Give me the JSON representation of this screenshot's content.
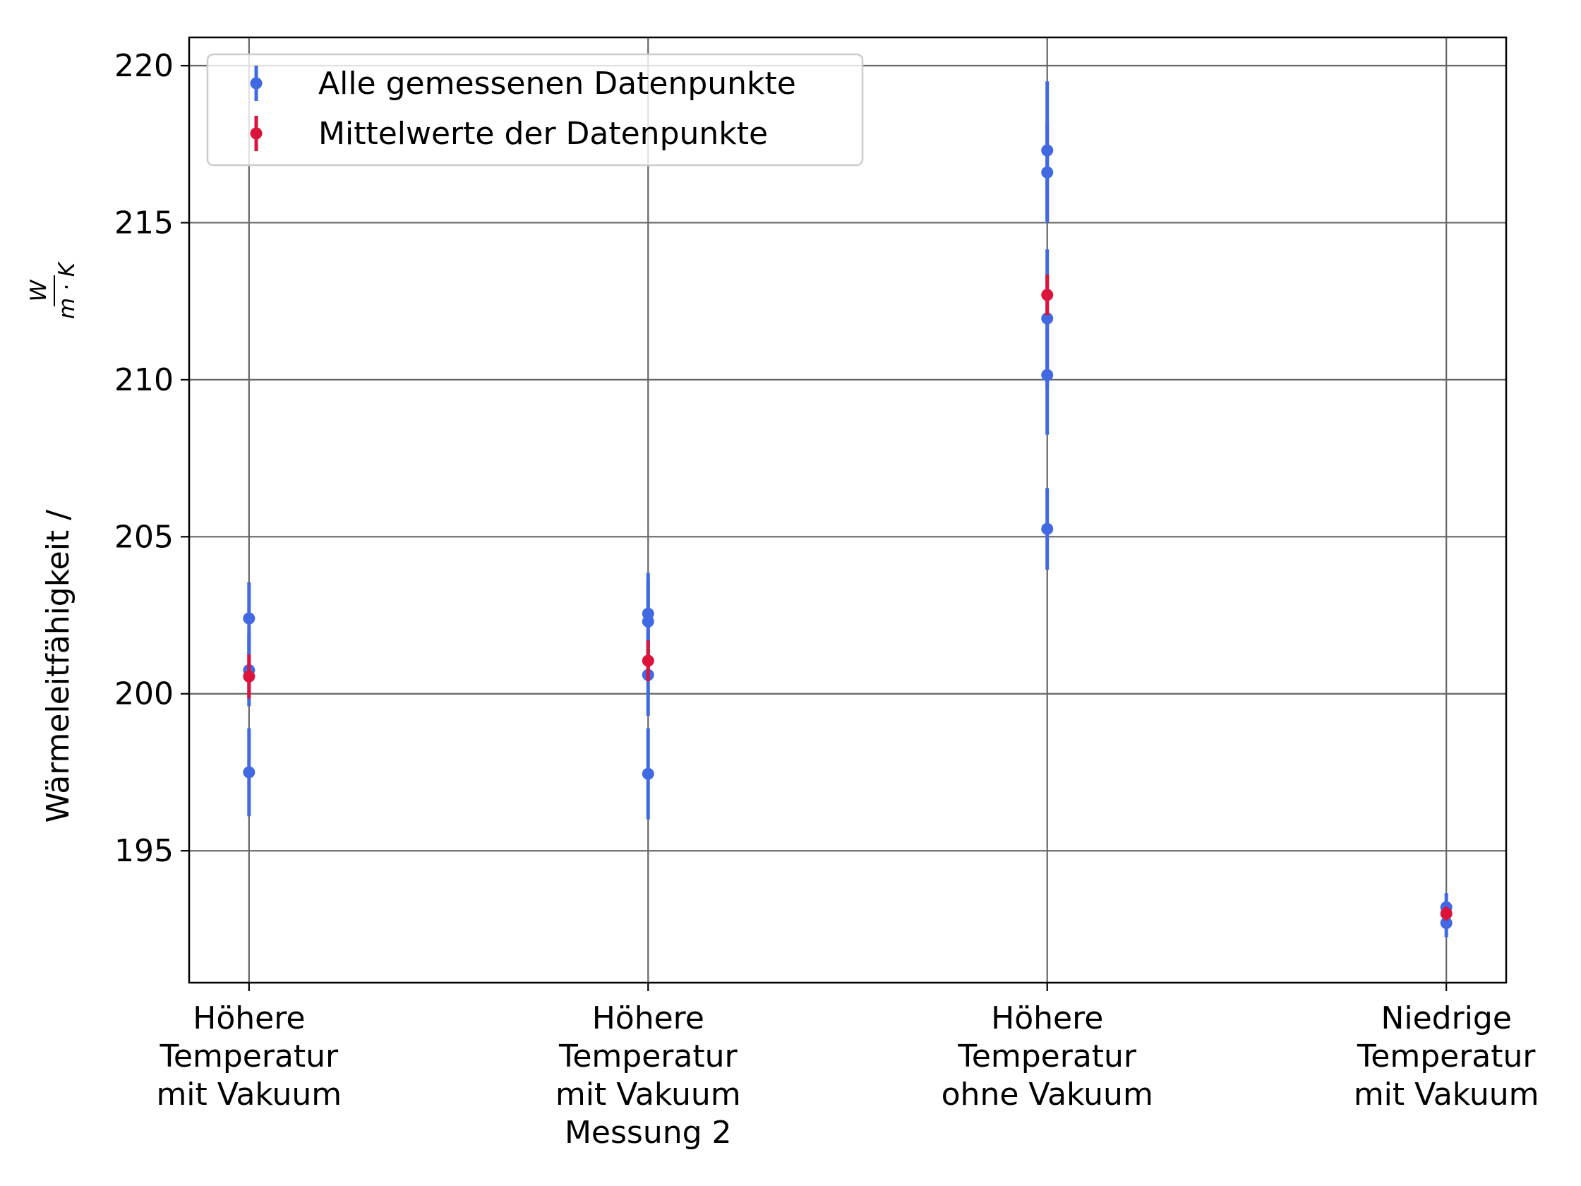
{
  "chart_data": {
    "type": "scatter",
    "title": "",
    "ylabel": "Wärmeleitfähigkeit / ",
    "ylabel_unit": {
      "numerator": "W",
      "denominator": "m · K"
    },
    "xlabel": "",
    "categories": [
      [
        "Höhere",
        "Temperatur",
        "mit Vakuum"
      ],
      [
        "Höhere",
        "Temperatur",
        "mit Vakuum",
        "Messung 2"
      ],
      [
        "Höhere",
        "Temperatur",
        "ohne Vakuum"
      ],
      [
        "Niedrige",
        "Temperatur",
        "mit Vakuum"
      ]
    ],
    "ylim": [
      190.8,
      220.9
    ],
    "xlim": [
      -0.15,
      3.15
    ],
    "yticks": [
      195,
      200,
      205,
      210,
      215,
      220
    ],
    "grid": true,
    "legend_position": "top-left",
    "series": [
      {
        "name": "Alle gemessenen Datenpunkte",
        "color": "#4169E1",
        "points": [
          {
            "x": 0,
            "y": 202.4,
            "err": 1.15
          },
          {
            "x": 0,
            "y": 200.75,
            "err": 1.15
          },
          {
            "x": 0,
            "y": 197.5,
            "err": 1.4
          },
          {
            "x": 1,
            "y": 202.55,
            "err": 1.3
          },
          {
            "x": 1,
            "y": 202.3,
            "err": 1.3
          },
          {
            "x": 1,
            "y": 200.6,
            "err": 1.3
          },
          {
            "x": 1,
            "y": 197.45,
            "err": 1.45
          },
          {
            "x": 2,
            "y": 217.3,
            "err": 2.2
          },
          {
            "x": 2,
            "y": 216.6,
            "err": 1.6
          },
          {
            "x": 2,
            "y": 211.95,
            "err": 2.2
          },
          {
            "x": 2,
            "y": 210.15,
            "err": 1.9
          },
          {
            "x": 2,
            "y": 205.25,
            "err": 1.3
          },
          {
            "x": 3,
            "y": 193.2,
            "err": 0.45
          },
          {
            "x": 3,
            "y": 192.7,
            "err": 0.45
          }
        ]
      },
      {
        "name": "Mittelwerte der Datenpunkte",
        "color": "#DC143C",
        "points": [
          {
            "x": 0,
            "y": 200.55,
            "err": 0.7
          },
          {
            "x": 1,
            "y": 201.05,
            "err": 0.65
          },
          {
            "x": 2,
            "y": 212.7,
            "err": 0.65
          },
          {
            "x": 3,
            "y": 193.0,
            "err": 0.22
          }
        ]
      }
    ]
  }
}
